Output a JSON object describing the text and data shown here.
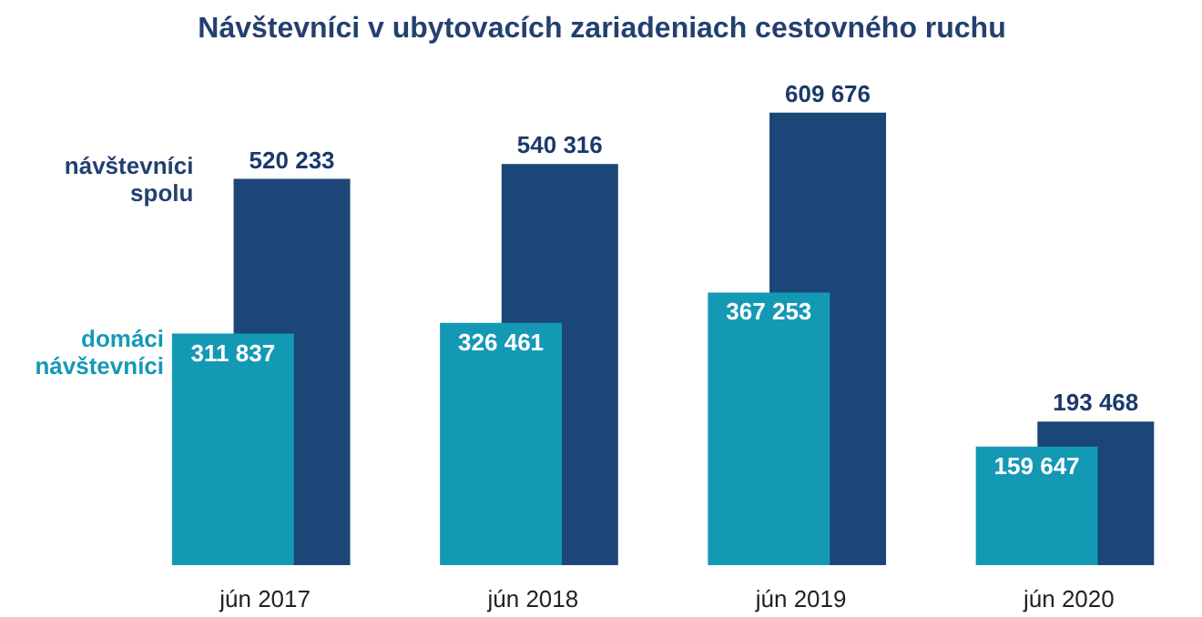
{
  "chart_data": {
    "type": "bar",
    "title": "Návštevníci v ubytovacích zariadeniach cestovného ruchu",
    "categories": [
      "jún 2017",
      "jún 2018",
      "jún 2019",
      "jún 2020"
    ],
    "series": [
      {
        "name": "návštevníci spolu",
        "color": "#1b4677",
        "values": [
          520233,
          540316,
          609676,
          193468
        ],
        "value_labels": [
          "520 233",
          "540 316",
          "609 676",
          "193 468"
        ]
      },
      {
        "name": "domáci návštevníci",
        "color": "#1499b5",
        "values": [
          311837,
          326461,
          367253,
          159647
        ],
        "value_labels": [
          "311 837",
          "326 461",
          "367 253",
          "159 647"
        ]
      }
    ],
    "data_labels": true,
    "legend": false,
    "grid": false
  }
}
